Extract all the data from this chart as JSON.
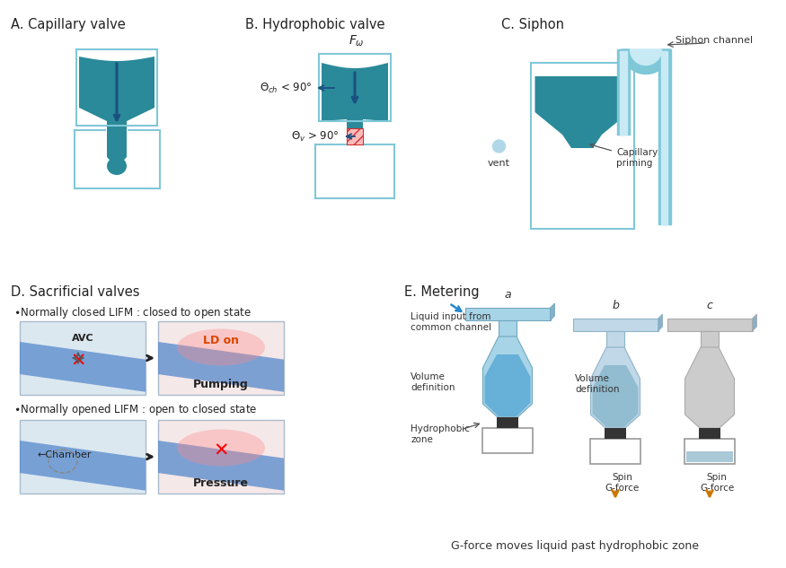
{
  "bg_color": "#ffffff",
  "teal": "#2a8a9a",
  "teal_dark": "#1a6a7a",
  "light_blue_border": "#80c8d8",
  "dark_arrow": "#1a5080",
  "siphon_tube_outer": "#7ec8d8",
  "siphon_tube_inner": "#c8eaf5",
  "red_hatch_face": "#ffbbbb",
  "red_hatch_edge": "#cc3333",
  "section_A_label": "A. Capillary valve",
  "section_B_label": "B. Hydrophobic valve",
  "section_C_label": "C. Siphon",
  "section_D_label": "D. Sacrificial valves",
  "section_E_label": "E. Metering",
  "label_fontsize": 10.5,
  "annot_fontsize": 8.5,
  "small_fontsize": 7.5
}
